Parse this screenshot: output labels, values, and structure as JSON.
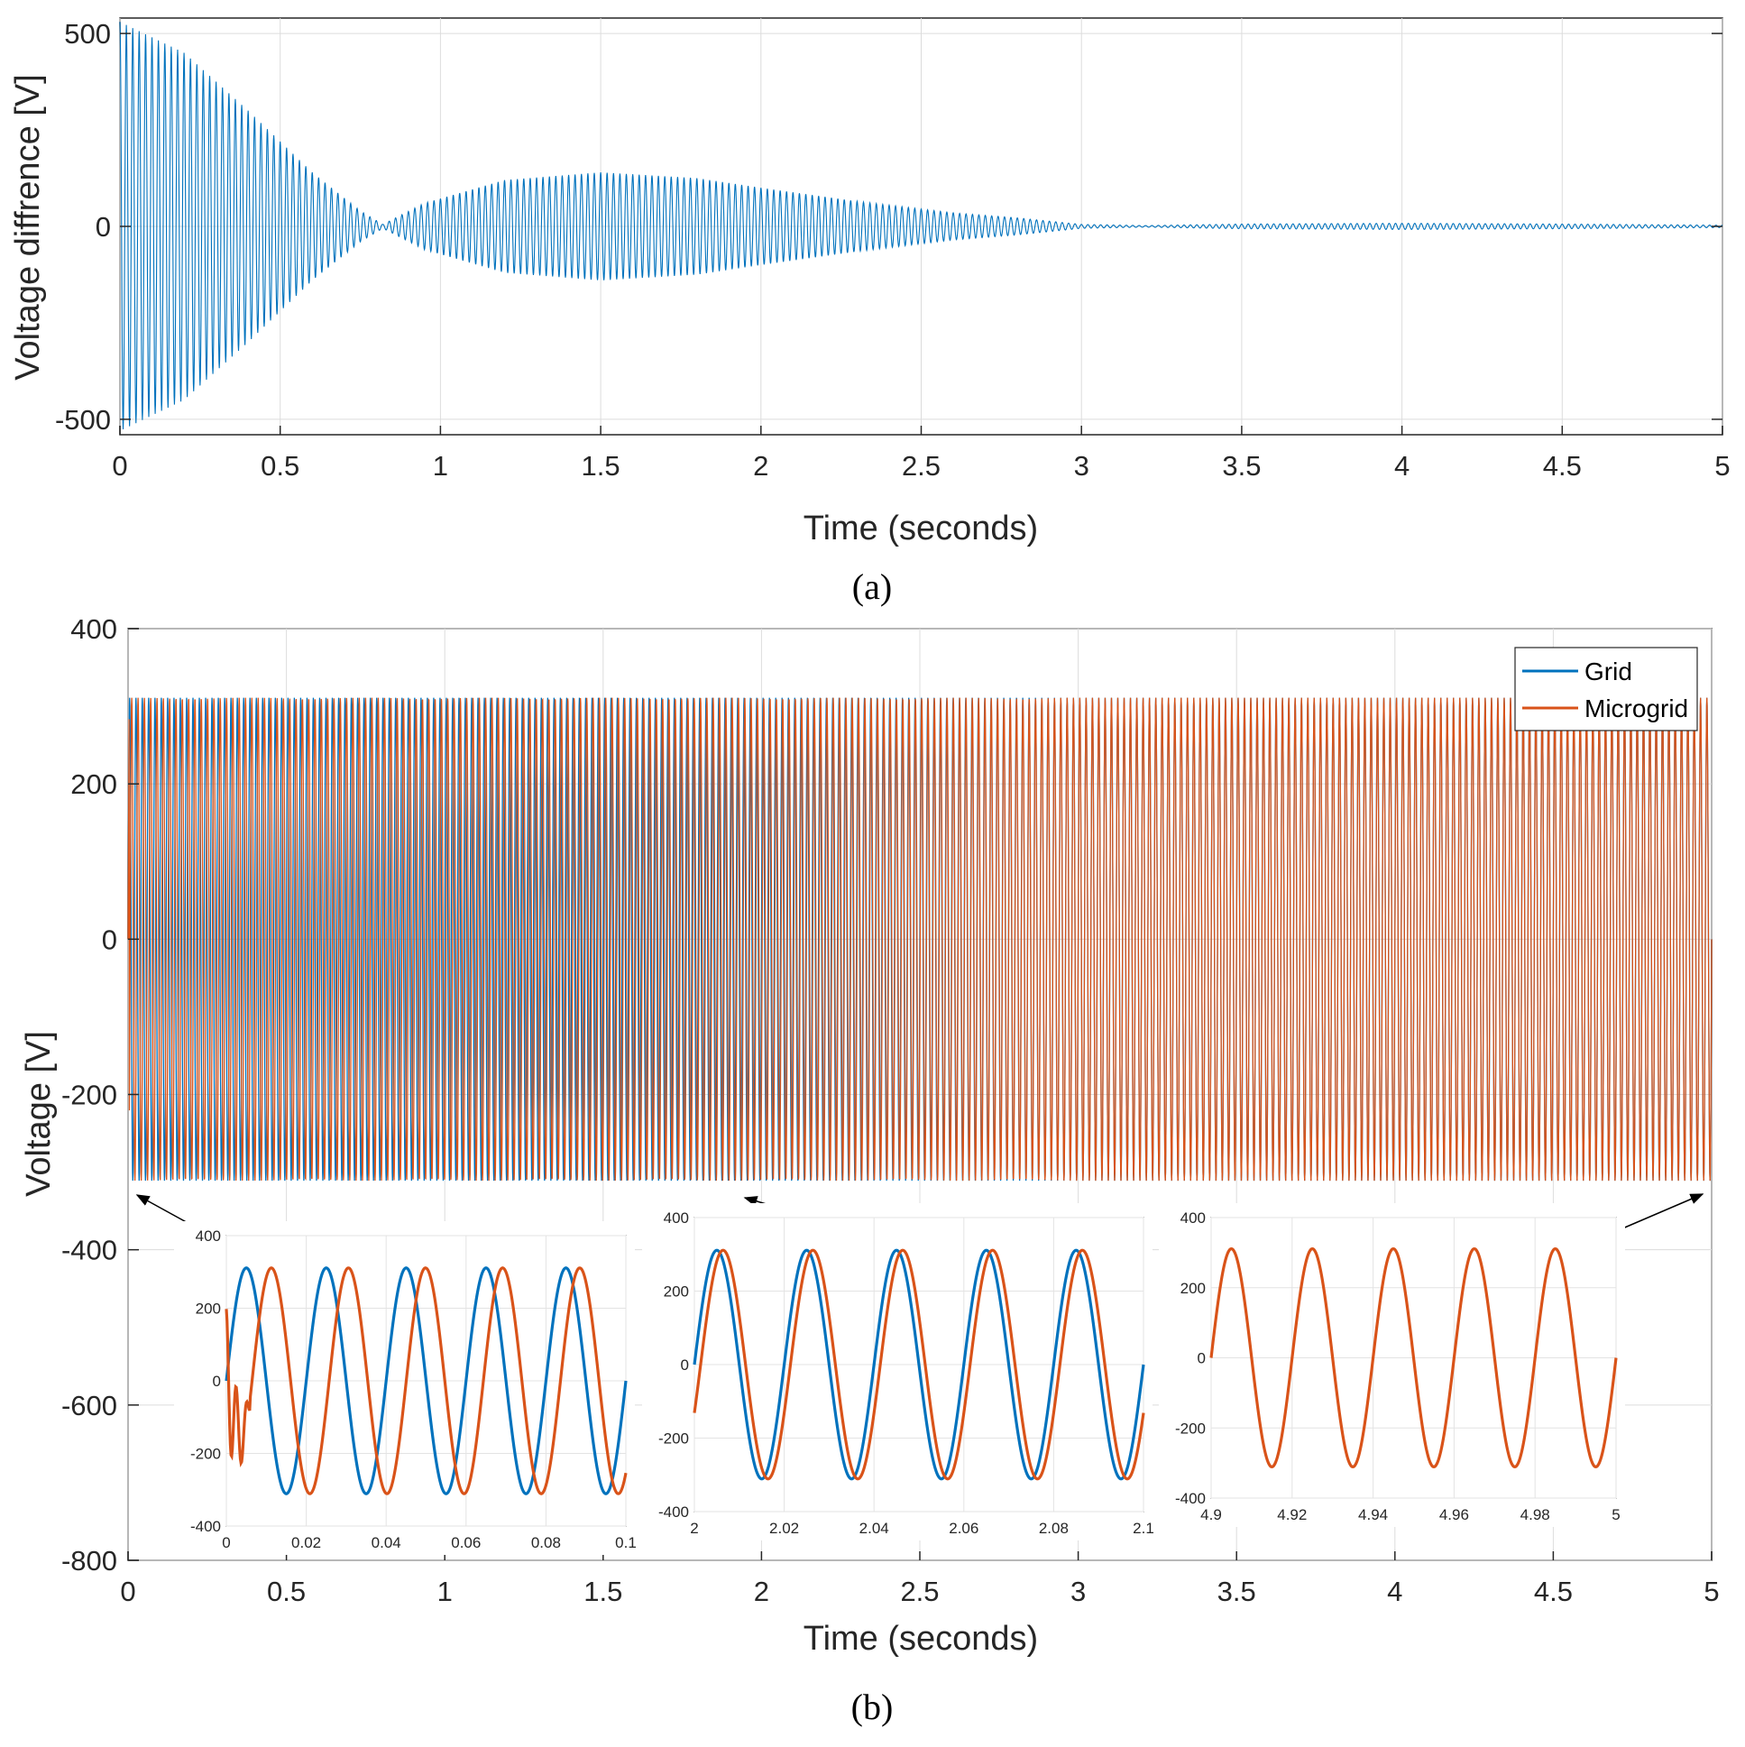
{
  "chart_data": [
    {
      "id": "a",
      "type": "line",
      "panel_label": "(a)",
      "xlabel": "Time (seconds)",
      "ylabel": "Voltage diffrence [V]",
      "xlim": [
        0,
        5
      ],
      "ylim": [
        -540,
        540
      ],
      "xticks": [
        "0",
        "0.5",
        "1",
        "1.5",
        "2",
        "2.5",
        "3",
        "3.5",
        "4",
        "4.5",
        "5"
      ],
      "yticks": [
        "-500",
        "0",
        "500"
      ],
      "grid": true,
      "series": [
        {
          "color": "#0072BD",
          "signal": "oscillating difference; envelope amplitude [V] vs time [s]",
          "oscillation_period_s": 0.02,
          "envelope": [
            [
              0,
              530
            ],
            [
              0.2,
              450
            ],
            [
              0.4,
              300
            ],
            [
              0.6,
              140
            ],
            [
              0.75,
              40
            ],
            [
              0.82,
              5
            ],
            [
              0.95,
              60
            ],
            [
              1.2,
              120
            ],
            [
              1.5,
              140
            ],
            [
              1.8,
              125
            ],
            [
              2.0,
              100
            ],
            [
              2.3,
              65
            ],
            [
              2.6,
              35
            ],
            [
              2.8,
              22
            ],
            [
              3.0,
              5
            ],
            [
              3.2,
              2
            ],
            [
              3.5,
              6
            ],
            [
              4.0,
              8
            ],
            [
              4.5,
              6
            ],
            [
              5.0,
              3
            ]
          ]
        }
      ]
    },
    {
      "id": "b",
      "type": "line",
      "panel_label": "(b)",
      "xlabel": "Time (seconds)",
      "ylabel": "Voltage [V]",
      "xlim": [
        0,
        5
      ],
      "ylim": [
        -800,
        400
      ],
      "xticks": [
        "0",
        "0.5",
        "1",
        "1.5",
        "2",
        "2.5",
        "3",
        "3.5",
        "4",
        "4.5",
        "5"
      ],
      "yticks": [
        "400",
        "200",
        "0",
        "-200",
        "-400",
        "-600",
        "-800"
      ],
      "grid": true,
      "legend": {
        "position": "top-right",
        "entries": [
          "Grid",
          "Microgrid"
        ]
      },
      "series": [
        {
          "name": "Grid",
          "color": "#0072BD",
          "amplitude": 311,
          "period_s": 0.02
        },
        {
          "name": "Microgrid",
          "color": "#D95319",
          "amplitude": 311,
          "initial_peak": 340
        }
      ],
      "insets": [
        {
          "xlim": [
            0,
            0.1
          ],
          "ylim": [
            -400,
            400
          ],
          "xticks": [
            "0",
            "0.02",
            "0.04",
            "0.06",
            "0.08",
            "0.1"
          ],
          "yticks": [
            "400",
            "200",
            "0",
            "-200",
            "-400"
          ],
          "grid_period_s": 0.02,
          "micro_period_s": 0.0193,
          "micro_phase_deg": -120,
          "micro_transient": true
        },
        {
          "xlim": [
            2,
            2.1
          ],
          "ylim": [
            -400,
            400
          ],
          "xticks": [
            "2",
            "2.02",
            "2.04",
            "2.06",
            "2.08",
            "2.1"
          ],
          "yticks": [
            "400",
            "200",
            "0",
            "-200",
            "-400"
          ],
          "grid_period_s": 0.02,
          "micro_period_s": 0.02,
          "micro_phase_deg": -25
        },
        {
          "xlim": [
            4.9,
            5
          ],
          "ylim": [
            -400,
            400
          ],
          "xticks": [
            "4.9",
            "4.92",
            "4.94",
            "4.96",
            "4.98",
            "5"
          ],
          "yticks": [
            "400",
            "200",
            "0",
            "-200",
            "-400"
          ],
          "grid_period_s": 0.02,
          "micro_period_s": 0.02,
          "micro_phase_deg": 0
        }
      ]
    }
  ]
}
